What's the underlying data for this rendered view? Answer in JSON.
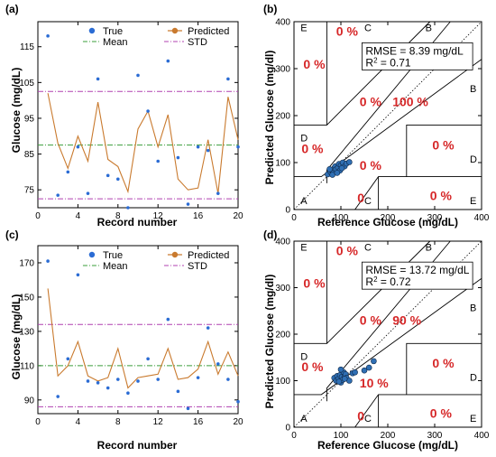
{
  "chart_data": [
    {
      "panel": "(a)",
      "type": "scatter+line",
      "xlabel": "Record number",
      "ylabel": "Glucose (mg/dL)",
      "xlim": [
        0,
        20
      ],
      "ylim": [
        70,
        122
      ],
      "xticks": [
        0,
        4,
        8,
        12,
        16,
        20
      ],
      "yticks": [
        75,
        85,
        95,
        105,
        115
      ],
      "legend": [
        "True",
        "Predicted",
        "Mean",
        "STD"
      ],
      "legend_position": "top-right",
      "series": [
        {
          "name": "True",
          "kind": "points",
          "color": "#2b6cd4",
          "x": [
            1,
            2,
            3,
            4,
            5,
            6,
            7,
            8,
            9,
            10,
            11,
            12,
            13,
            14,
            15,
            16,
            17,
            18,
            19,
            20
          ],
          "y": [
            118,
            73.5,
            80,
            87,
            74,
            106,
            79,
            78,
            70,
            107,
            97,
            83,
            111,
            84,
            71,
            87,
            86,
            74,
            106,
            87
          ]
        },
        {
          "name": "Predicted",
          "kind": "line",
          "color": "#c97a2e",
          "x": [
            1,
            2,
            3,
            4,
            5,
            6,
            7,
            8,
            9,
            10,
            11,
            12,
            13,
            14,
            15,
            16,
            17,
            18,
            19,
            20
          ],
          "y": [
            102,
            88,
            81,
            90,
            83,
            99.5,
            83.5,
            81.5,
            74.5,
            92,
            97,
            87,
            96,
            78,
            75,
            75.5,
            89,
            74,
            101,
            89
          ]
        },
        {
          "name": "Mean",
          "kind": "hline",
          "color": "#3a9d3a",
          "y": 87.5
        },
        {
          "name": "STD",
          "kind": "hline2",
          "color": "#b040b0",
          "y": [
            102.5,
            72.5
          ]
        }
      ]
    },
    {
      "panel": "(b)",
      "type": "clarke-error-grid",
      "xlabel": "Reference Glucose (mg/dL)",
      "ylabel": "Predicted Glucose (mg/dl)",
      "xlim": [
        0,
        400
      ],
      "ylim": [
        0,
        400
      ],
      "ticks": [
        0,
        100,
        200,
        300,
        400
      ],
      "rmse_text": "RMSE = 8.39 mg/dL",
      "r2_text": "R",
      "r2_value": " = 0.71",
      "zones": {
        "A": "A",
        "B": "B",
        "C": "C",
        "D": "D",
        "E": "E"
      },
      "percentages": {
        "A": "100 %",
        "B": "0 %",
        "C_top": "0 %",
        "C_bottom": "0",
        "D_left": "0 %",
        "D_right": "0 %",
        "E_top": "0 %",
        "E_bottom": "0 %",
        "A_low": "0 %"
      },
      "points": {
        "x": [
          72,
          78,
          80,
          84,
          86,
          88,
          90,
          94,
          96,
          98,
          100,
          104,
          108,
          112,
          118,
          82,
          76,
          92,
          102
        ],
        "y": [
          75,
          80,
          84,
          79,
          88,
          92,
          86,
          90,
          97,
          83,
          94,
          100,
          92,
          98,
          101,
          74,
          86,
          78,
          88
        ]
      }
    },
    {
      "panel": "(c)",
      "type": "scatter+line",
      "xlabel": "Record number",
      "ylabel": "Glucose (mg/dL)",
      "xlim": [
        0,
        20
      ],
      "ylim": [
        82,
        180
      ],
      "xticks": [
        0,
        4,
        8,
        12,
        16,
        20
      ],
      "yticks": [
        90,
        110,
        130,
        150,
        170
      ],
      "legend": [
        "True",
        "Predicted",
        "Mean",
        "STD"
      ],
      "legend_position": "top-right",
      "series": [
        {
          "name": "True",
          "kind": "points",
          "color": "#2b6cd4",
          "x": [
            1,
            2,
            3,
            4,
            5,
            6,
            7,
            8,
            9,
            10,
            11,
            12,
            13,
            14,
            15,
            16,
            17,
            18,
            19,
            20
          ],
          "y": [
            171,
            92,
            114,
            163,
            101,
            100,
            97,
            102,
            94,
            101,
            114,
            102,
            137,
            95,
            85,
            103,
            132,
            111,
            102,
            89
          ]
        },
        {
          "name": "Predicted",
          "kind": "line",
          "color": "#c97a2e",
          "x": [
            1,
            2,
            3,
            4,
            5,
            6,
            7,
            8,
            9,
            10,
            11,
            12,
            13,
            14,
            15,
            16,
            17,
            18,
            19,
            20
          ],
          "y": [
            155,
            104,
            110,
            124,
            104,
            101,
            103,
            120,
            97,
            103,
            104,
            105,
            120,
            102,
            103,
            108,
            124,
            105,
            118,
            104
          ]
        },
        {
          "name": "Mean",
          "kind": "hline",
          "color": "#3a9d3a",
          "y": 110
        },
        {
          "name": "STD",
          "kind": "hline2",
          "color": "#b040b0",
          "y": [
            134,
            86
          ]
        }
      ]
    },
    {
      "panel": "(d)",
      "type": "clarke-error-grid",
      "xlabel": "Reference Glucose (mg/dL)",
      "ylabel": "Predicted Glucose (mg/dl)",
      "xlim": [
        0,
        400
      ],
      "ylim": [
        0,
        400
      ],
      "ticks": [
        0,
        100,
        200,
        300,
        400
      ],
      "rmse_text": "RMSE = 13.72 mg/dL",
      "r2_text": "R",
      "r2_value": " = 0.72",
      "zones": {
        "A": "A",
        "B": "B",
        "C": "C",
        "D": "D",
        "E": "E"
      },
      "percentages": {
        "A": "90 %",
        "B": "10 %",
        "C_top": "0 %",
        "C_bottom": "0",
        "D_left": "0 %",
        "D_right": "0 %",
        "E_top": "0 %",
        "E_bottom": "0 %",
        "A_low": "0 %"
      },
      "points": {
        "x": [
          86,
          90,
          92,
          95,
          98,
          100,
          102,
          104,
          106,
          108,
          110,
          112,
          118,
          125,
          130,
          150,
          160,
          170,
          100,
          96,
          108
        ],
        "y": [
          106,
          100,
          110,
          104,
          112,
          96,
          108,
          102,
          118,
          110,
          114,
          106,
          100,
          116,
          118,
          122,
          128,
          142,
          124,
          98,
          104
        ]
      }
    }
  ]
}
